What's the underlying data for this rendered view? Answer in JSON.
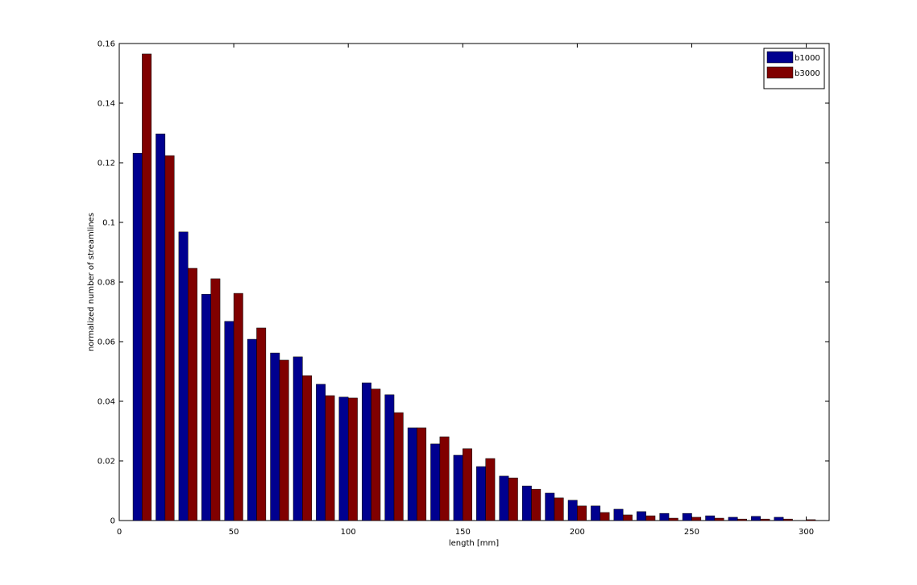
{
  "chart_data": {
    "type": "bar",
    "xlabel": "length [mm]",
    "ylabel": "normalized number of streamlines",
    "x": [
      10,
      20,
      30,
      40,
      50,
      60,
      70,
      80,
      90,
      100,
      110,
      120,
      130,
      140,
      150,
      160,
      170,
      180,
      190,
      200,
      210,
      220,
      230,
      240,
      250,
      260,
      270,
      280,
      290,
      300
    ],
    "series": [
      {
        "name": "b1000",
        "color": "#00008f",
        "values": [
          0.1232,
          0.1297,
          0.0968,
          0.0759,
          0.0668,
          0.0608,
          0.0562,
          0.0549,
          0.0457,
          0.0414,
          0.0462,
          0.0422,
          0.0311,
          0.0257,
          0.0219,
          0.0181,
          0.0149,
          0.0116,
          0.0092,
          0.0068,
          0.0049,
          0.0038,
          0.003,
          0.0024,
          0.0024,
          0.0016,
          0.0011,
          0.0014,
          0.0011,
          0
        ]
      },
      {
        "name": "b3000",
        "color": "#800000",
        "values": [
          0.1565,
          0.1224,
          0.0846,
          0.0811,
          0.0762,
          0.0646,
          0.0538,
          0.0486,
          0.0419,
          0.0411,
          0.0441,
          0.0362,
          0.0311,
          0.0281,
          0.0241,
          0.0208,
          0.0143,
          0.0105,
          0.0076,
          0.0049,
          0.0027,
          0.0019,
          0.0016,
          0.0008,
          0.0011,
          0.0008,
          0.0005,
          0.0005,
          0.0005,
          0.0003
        ]
      }
    ],
    "xlim": [
      0,
      310
    ],
    "xticks": [
      0,
      50,
      100,
      150,
      200,
      250,
      300
    ],
    "ylim": [
      0,
      0.16
    ],
    "yticks": [
      0,
      0.02,
      0.04,
      0.06,
      0.08,
      0.1,
      0.12,
      0.14,
      0.16
    ],
    "legend": "top-right"
  }
}
